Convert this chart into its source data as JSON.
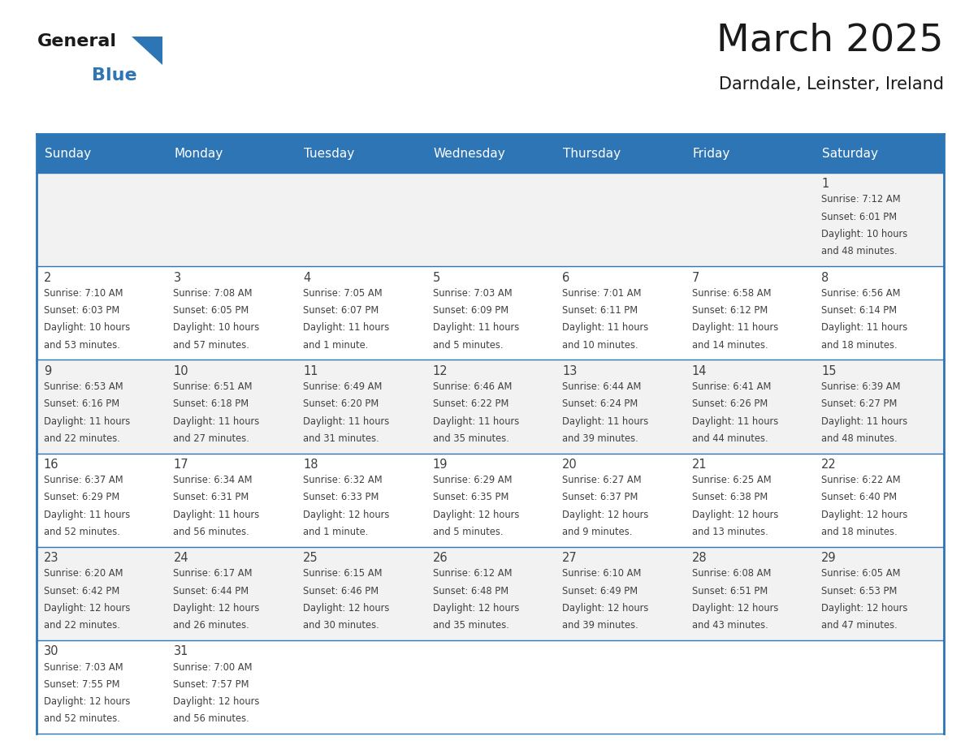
{
  "title": "March 2025",
  "subtitle": "Darndale, Leinster, Ireland",
  "header_bg": "#2E75B6",
  "header_text_color": "#FFFFFF",
  "day_names": [
    "Sunday",
    "Monday",
    "Tuesday",
    "Wednesday",
    "Thursday",
    "Friday",
    "Saturday"
  ],
  "cell_bg_odd": "#F2F2F2",
  "cell_bg_even": "#FFFFFF",
  "cell_text_color": "#404040",
  "grid_color": "#2E75B6",
  "title_color": "#1a1a1a",
  "subtitle_color": "#1a1a1a",
  "logo_general_color": "#1a1a1a",
  "logo_blue_color": "#2E75B6",
  "logo_triangle_color": "#2E75B6",
  "days": [
    {
      "date": 1,
      "row": 0,
      "col": 6,
      "sunrise": "7:12 AM",
      "sunset": "6:01 PM",
      "dl1": "Daylight: 10 hours",
      "dl2": "and 48 minutes."
    },
    {
      "date": 2,
      "row": 1,
      "col": 0,
      "sunrise": "7:10 AM",
      "sunset": "6:03 PM",
      "dl1": "Daylight: 10 hours",
      "dl2": "and 53 minutes."
    },
    {
      "date": 3,
      "row": 1,
      "col": 1,
      "sunrise": "7:08 AM",
      "sunset": "6:05 PM",
      "dl1": "Daylight: 10 hours",
      "dl2": "and 57 minutes."
    },
    {
      "date": 4,
      "row": 1,
      "col": 2,
      "sunrise": "7:05 AM",
      "sunset": "6:07 PM",
      "dl1": "Daylight: 11 hours",
      "dl2": "and 1 minute."
    },
    {
      "date": 5,
      "row": 1,
      "col": 3,
      "sunrise": "7:03 AM",
      "sunset": "6:09 PM",
      "dl1": "Daylight: 11 hours",
      "dl2": "and 5 minutes."
    },
    {
      "date": 6,
      "row": 1,
      "col": 4,
      "sunrise": "7:01 AM",
      "sunset": "6:11 PM",
      "dl1": "Daylight: 11 hours",
      "dl2": "and 10 minutes."
    },
    {
      "date": 7,
      "row": 1,
      "col": 5,
      "sunrise": "6:58 AM",
      "sunset": "6:12 PM",
      "dl1": "Daylight: 11 hours",
      "dl2": "and 14 minutes."
    },
    {
      "date": 8,
      "row": 1,
      "col": 6,
      "sunrise": "6:56 AM",
      "sunset": "6:14 PM",
      "dl1": "Daylight: 11 hours",
      "dl2": "and 18 minutes."
    },
    {
      "date": 9,
      "row": 2,
      "col": 0,
      "sunrise": "6:53 AM",
      "sunset": "6:16 PM",
      "dl1": "Daylight: 11 hours",
      "dl2": "and 22 minutes."
    },
    {
      "date": 10,
      "row": 2,
      "col": 1,
      "sunrise": "6:51 AM",
      "sunset": "6:18 PM",
      "dl1": "Daylight: 11 hours",
      "dl2": "and 27 minutes."
    },
    {
      "date": 11,
      "row": 2,
      "col": 2,
      "sunrise": "6:49 AM",
      "sunset": "6:20 PM",
      "dl1": "Daylight: 11 hours",
      "dl2": "and 31 minutes."
    },
    {
      "date": 12,
      "row": 2,
      "col": 3,
      "sunrise": "6:46 AM",
      "sunset": "6:22 PM",
      "dl1": "Daylight: 11 hours",
      "dl2": "and 35 minutes."
    },
    {
      "date": 13,
      "row": 2,
      "col": 4,
      "sunrise": "6:44 AM",
      "sunset": "6:24 PM",
      "dl1": "Daylight: 11 hours",
      "dl2": "and 39 minutes."
    },
    {
      "date": 14,
      "row": 2,
      "col": 5,
      "sunrise": "6:41 AM",
      "sunset": "6:26 PM",
      "dl1": "Daylight: 11 hours",
      "dl2": "and 44 minutes."
    },
    {
      "date": 15,
      "row": 2,
      "col": 6,
      "sunrise": "6:39 AM",
      "sunset": "6:27 PM",
      "dl1": "Daylight: 11 hours",
      "dl2": "and 48 minutes."
    },
    {
      "date": 16,
      "row": 3,
      "col": 0,
      "sunrise": "6:37 AM",
      "sunset": "6:29 PM",
      "dl1": "Daylight: 11 hours",
      "dl2": "and 52 minutes."
    },
    {
      "date": 17,
      "row": 3,
      "col": 1,
      "sunrise": "6:34 AM",
      "sunset": "6:31 PM",
      "dl1": "Daylight: 11 hours",
      "dl2": "and 56 minutes."
    },
    {
      "date": 18,
      "row": 3,
      "col": 2,
      "sunrise": "6:32 AM",
      "sunset": "6:33 PM",
      "dl1": "Daylight: 12 hours",
      "dl2": "and 1 minute."
    },
    {
      "date": 19,
      "row": 3,
      "col": 3,
      "sunrise": "6:29 AM",
      "sunset": "6:35 PM",
      "dl1": "Daylight: 12 hours",
      "dl2": "and 5 minutes."
    },
    {
      "date": 20,
      "row": 3,
      "col": 4,
      "sunrise": "6:27 AM",
      "sunset": "6:37 PM",
      "dl1": "Daylight: 12 hours",
      "dl2": "and 9 minutes."
    },
    {
      "date": 21,
      "row": 3,
      "col": 5,
      "sunrise": "6:25 AM",
      "sunset": "6:38 PM",
      "dl1": "Daylight: 12 hours",
      "dl2": "and 13 minutes."
    },
    {
      "date": 22,
      "row": 3,
      "col": 6,
      "sunrise": "6:22 AM",
      "sunset": "6:40 PM",
      "dl1": "Daylight: 12 hours",
      "dl2": "and 18 minutes."
    },
    {
      "date": 23,
      "row": 4,
      "col": 0,
      "sunrise": "6:20 AM",
      "sunset": "6:42 PM",
      "dl1": "Daylight: 12 hours",
      "dl2": "and 22 minutes."
    },
    {
      "date": 24,
      "row": 4,
      "col": 1,
      "sunrise": "6:17 AM",
      "sunset": "6:44 PM",
      "dl1": "Daylight: 12 hours",
      "dl2": "and 26 minutes."
    },
    {
      "date": 25,
      "row": 4,
      "col": 2,
      "sunrise": "6:15 AM",
      "sunset": "6:46 PM",
      "dl1": "Daylight: 12 hours",
      "dl2": "and 30 minutes."
    },
    {
      "date": 26,
      "row": 4,
      "col": 3,
      "sunrise": "6:12 AM",
      "sunset": "6:48 PM",
      "dl1": "Daylight: 12 hours",
      "dl2": "and 35 minutes."
    },
    {
      "date": 27,
      "row": 4,
      "col": 4,
      "sunrise": "6:10 AM",
      "sunset": "6:49 PM",
      "dl1": "Daylight: 12 hours",
      "dl2": "and 39 minutes."
    },
    {
      "date": 28,
      "row": 4,
      "col": 5,
      "sunrise": "6:08 AM",
      "sunset": "6:51 PM",
      "dl1": "Daylight: 12 hours",
      "dl2": "and 43 minutes."
    },
    {
      "date": 29,
      "row": 4,
      "col": 6,
      "sunrise": "6:05 AM",
      "sunset": "6:53 PM",
      "dl1": "Daylight: 12 hours",
      "dl2": "and 47 minutes."
    },
    {
      "date": 30,
      "row": 5,
      "col": 0,
      "sunrise": "7:03 AM",
      "sunset": "7:55 PM",
      "dl1": "Daylight: 12 hours",
      "dl2": "and 52 minutes."
    },
    {
      "date": 31,
      "row": 5,
      "col": 1,
      "sunrise": "7:00 AM",
      "sunset": "7:57 PM",
      "dl1": "Daylight: 12 hours",
      "dl2": "and 56 minutes."
    }
  ]
}
